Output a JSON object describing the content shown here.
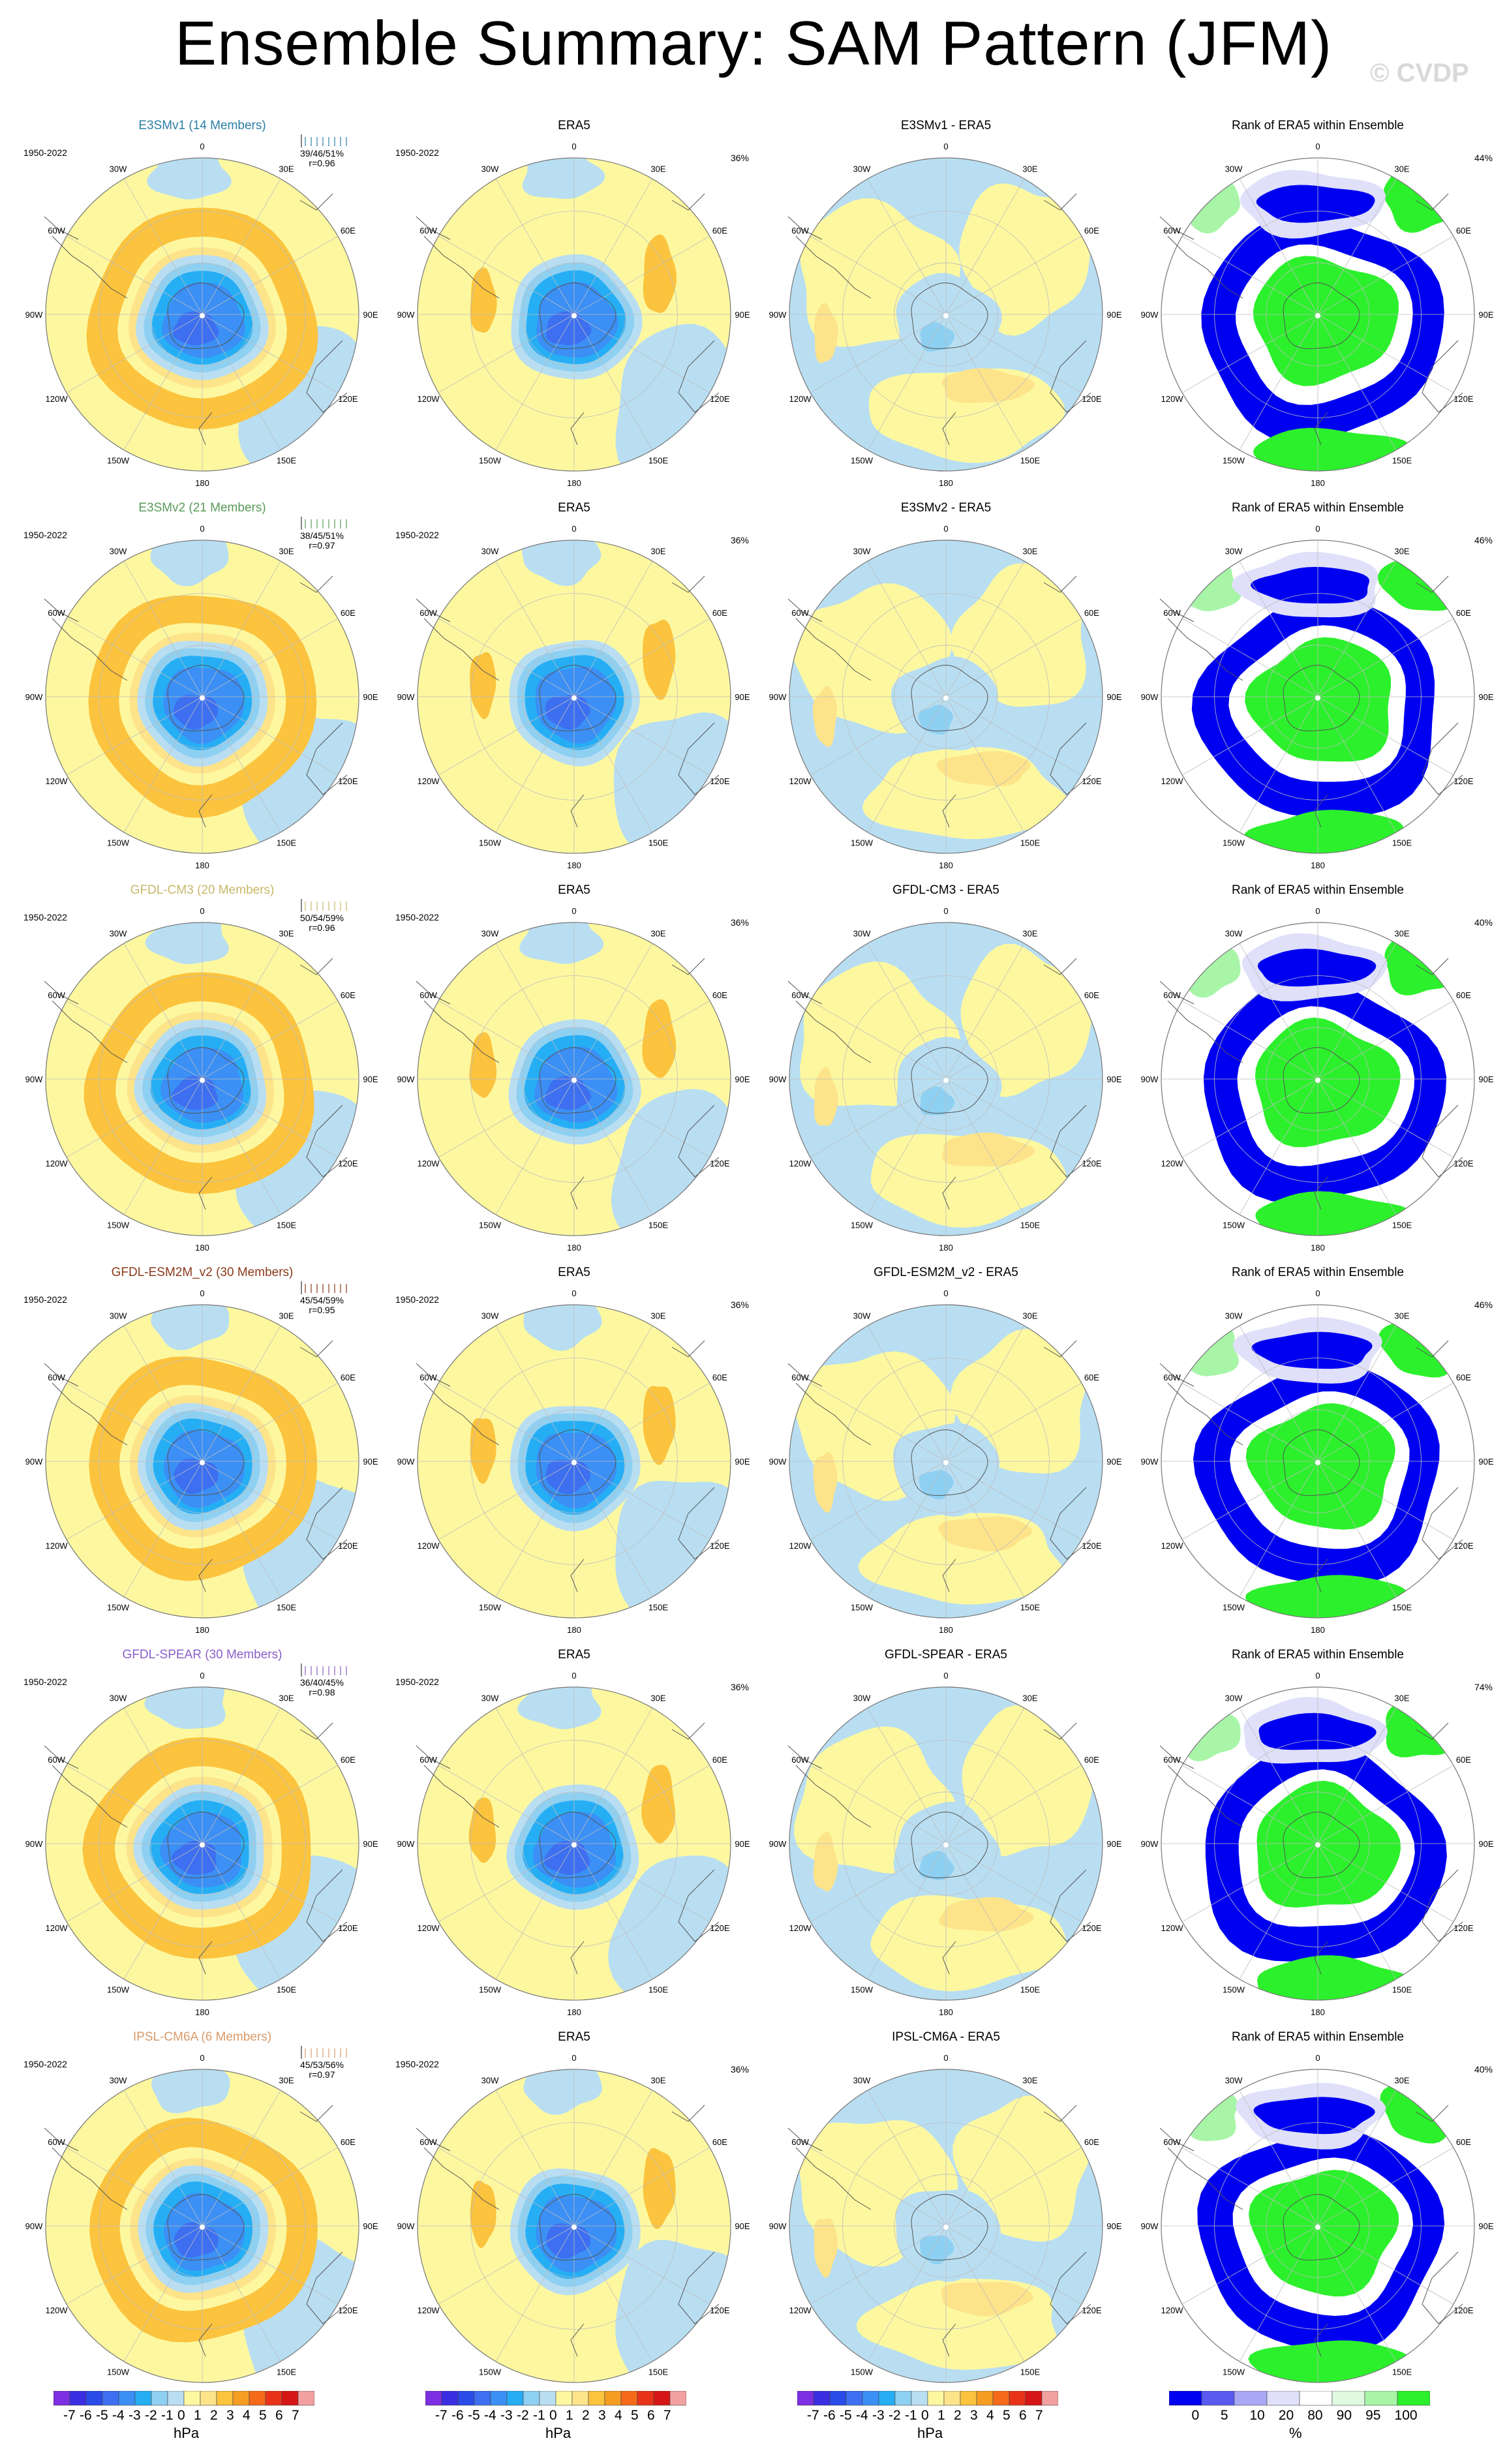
{
  "title": "Ensemble Summary: SAM Pattern (JFM)",
  "copyright": "© CVDP",
  "period": "1950-2022",
  "lon_labels": [
    "0",
    "30E",
    "60E",
    "90E",
    "120E",
    "150E",
    "180",
    "150W",
    "120W",
    "90W",
    "60W",
    "30W"
  ],
  "col_titles": {
    "obs": "ERA5",
    "rank": "Rank of ERA5 within Ensemble"
  },
  "obs_pct": "36%",
  "rows": [
    {
      "model": "E3SMv1",
      "title": "E3SMv1 (14 Members)",
      "color": "#2b7fa6",
      "stats": "39/46/51%",
      "r": "r=0.96",
      "diff": "E3SMv1 - ERA5",
      "rank_pct": "44%"
    },
    {
      "model": "E3SMv2",
      "title": "E3SMv2 (21 Members)",
      "color": "#5a9a5a",
      "stats": "38/45/51%",
      "r": "r=0.97",
      "diff": "E3SMv2 - ERA5",
      "rank_pct": "46%"
    },
    {
      "model": "GFDL-CM3",
      "title": "GFDL-CM3 (20 Members)",
      "color": "#c8b86a",
      "stats": "50/54/59%",
      "r": "r=0.96",
      "diff": "GFDL-CM3 - ERA5",
      "rank_pct": "40%"
    },
    {
      "model": "GFDL-ESM2M_v2",
      "title": "GFDL-ESM2M_v2 (30 Members)",
      "color": "#8b3a1a",
      "stats": "45/54/59%",
      "r": "r=0.95",
      "diff": "GFDL-ESM2M_v2 - ERA5",
      "rank_pct": "46%"
    },
    {
      "model": "GFDL-SPEAR",
      "title": "GFDL-SPEAR (30 Members)",
      "color": "#8a5fc8",
      "stats": "36/40/45%",
      "r": "r=0.98",
      "diff": "GFDL-SPEAR - ERA5",
      "rank_pct": "74%"
    },
    {
      "model": "IPSL-CM6A",
      "title": "IPSL-CM6A (6 Members)",
      "color": "#d89a6a",
      "stats": "45/53/56%",
      "r": "r=0.97",
      "diff": "IPSL-CM6A - ERA5",
      "rank_pct": "40%"
    }
  ],
  "colorbar_hpa": {
    "ticks": [
      "-7",
      "-6",
      "-5",
      "-4",
      "-3",
      "-2",
      "-1",
      "0",
      "1",
      "2",
      "3",
      "4",
      "5",
      "6",
      "7"
    ],
    "unit": "hPa",
    "colors": [
      "#7b2fe0",
      "#3b2ee0",
      "#2a4be8",
      "#3d6ff0",
      "#3b8ff5",
      "#26aef5",
      "#8ed0f2",
      "#b9def2",
      "#fdf8a0",
      "#fde38a",
      "#fbc33e",
      "#f59d23",
      "#f56a1a",
      "#e8331a",
      "#d61616",
      "#f2a0a0"
    ]
  },
  "colorbar_rank": {
    "ticks": [
      "0",
      "5",
      "10",
      "20",
      "80",
      "90",
      "95",
      "100"
    ],
    "unit": "%",
    "colors": [
      "#0000f0",
      "#5a5af0",
      "#a8a8f5",
      "#e0e0fa",
      "#ffffff",
      "#e0fae0",
      "#a8f5a8",
      "#2cf02c"
    ]
  }
}
